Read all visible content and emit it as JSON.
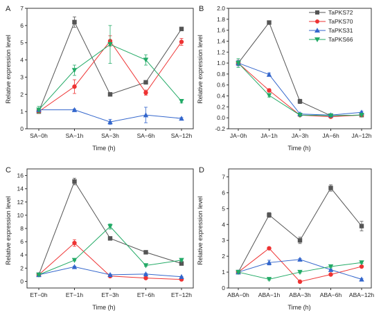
{
  "chart_data": [
    {
      "type": "line",
      "panel": "A",
      "categories": [
        "SA−0h",
        "SA−1h",
        "SA−3h",
        "SA−6h",
        "SA−12h"
      ],
      "xlabel": "Time (h)",
      "ylabel": "Relative expression level",
      "ylim": [
        0,
        7
      ],
      "yticks": [
        "0",
        "1",
        "2",
        "3",
        "4",
        "5",
        "6",
        "7"
      ],
      "series": [
        {
          "color": "#555555",
          "marker": "square",
          "values": [
            1.0,
            6.2,
            2.0,
            2.7,
            5.8
          ],
          "errors": [
            0.1,
            0.3,
            0.05,
            0.1,
            0.1
          ]
        },
        {
          "color": "#ee3333",
          "marker": "circle",
          "values": [
            1.0,
            2.45,
            5.1,
            2.1,
            5.05
          ],
          "errors": [
            0.1,
            0.4,
            0.3,
            0.15,
            0.2
          ]
        },
        {
          "color": "#3366cc",
          "marker": "triangle-up",
          "values": [
            1.1,
            1.1,
            0.4,
            0.8,
            0.6
          ],
          "errors": [
            0.05,
            0.05,
            0.15,
            0.45,
            0.05
          ]
        },
        {
          "color": "#22aa66",
          "marker": "triangle-down",
          "values": [
            1.1,
            3.4,
            4.9,
            4.0,
            1.6
          ],
          "errors": [
            0.2,
            0.3,
            1.1,
            0.3,
            0.1
          ]
        }
      ]
    },
    {
      "type": "line",
      "panel": "B",
      "categories": [
        "JA−0h",
        "JA−1h",
        "JA−3h",
        "JA−6h",
        "JA−12h"
      ],
      "xlabel": "Time (h)",
      "ylabel": "Relative expression level",
      "ylim": [
        -0.2,
        2.0
      ],
      "yticks": [
        "-0.2",
        "0.0",
        "0.2",
        "0.4",
        "0.6",
        "0.8",
        "1.0",
        "1.2",
        "1.4",
        "1.6",
        "1.8",
        "2.0"
      ],
      "legend": {
        "position": "top-right",
        "entries": [
          "TaPKS72",
          "TaPKS70",
          "TaPKS31",
          "TaPKS66"
        ]
      },
      "series": [
        {
          "name": "TaPKS72",
          "color": "#555555",
          "marker": "square",
          "values": [
            1.0,
            1.74,
            0.3,
            0.04,
            0.05
          ],
          "errors": [
            0.05,
            0.02,
            0.04,
            0.02,
            0.02
          ]
        },
        {
          "name": "TaPKS70",
          "color": "#ee3333",
          "marker": "circle",
          "values": [
            1.0,
            0.5,
            0.05,
            0.02,
            0.05
          ],
          "errors": [
            0.05,
            0.03,
            0.02,
            0.01,
            0.01
          ]
        },
        {
          "name": "TaPKS31",
          "color": "#3366cc",
          "marker": "triangle-up",
          "values": [
            1.0,
            0.79,
            0.07,
            0.05,
            0.1
          ],
          "errors": [
            0.05,
            0.03,
            0.02,
            0.01,
            0.02
          ]
        },
        {
          "name": "TaPKS66",
          "color": "#22aa66",
          "marker": "triangle-down",
          "values": [
            1.0,
            0.41,
            0.05,
            0.04,
            0.05
          ],
          "errors": [
            0.08,
            0.03,
            0.02,
            0.01,
            0.01
          ]
        }
      ]
    },
    {
      "type": "line",
      "panel": "C",
      "categories": [
        "ET−0h",
        "ET−1h",
        "ET−3h",
        "ET−6h",
        "ET−12h"
      ],
      "xlabel": "Time (h)",
      "ylabel": "Relative expression level",
      "ylim": [
        -1,
        17
      ],
      "yticks": [
        "0",
        "2",
        "4",
        "6",
        "8",
        "10",
        "12",
        "14",
        "16"
      ],
      "series": [
        {
          "color": "#555555",
          "marker": "square",
          "values": [
            1.0,
            15.1,
            6.5,
            4.4,
            2.7
          ],
          "errors": [
            0.1,
            0.5,
            0.1,
            0.1,
            0.1
          ]
        },
        {
          "color": "#ee3333",
          "marker": "circle",
          "values": [
            1.0,
            5.8,
            0.8,
            0.5,
            0.3
          ],
          "errors": [
            0.1,
            0.5,
            0.1,
            0.05,
            0.05
          ]
        },
        {
          "color": "#3366cc",
          "marker": "triangle-up",
          "values": [
            1.0,
            2.2,
            1.0,
            1.1,
            0.7
          ],
          "errors": [
            0.1,
            0.1,
            0.1,
            0.1,
            0.05
          ]
        },
        {
          "color": "#22aa66",
          "marker": "triangle-down",
          "values": [
            1.0,
            3.2,
            8.3,
            2.4,
            3.2
          ],
          "errors": [
            0.1,
            0.1,
            0.4,
            0.1,
            0.1
          ]
        }
      ]
    },
    {
      "type": "line",
      "panel": "D",
      "categories": [
        "ABA−0h",
        "ABA−1h",
        "ABA−3h",
        "ABA−6h",
        "ABA−12h"
      ],
      "xlabel": "Time (h)",
      "ylabel": "Relative expression level",
      "ylim": [
        0,
        7.5
      ],
      "yticks": [
        "0",
        "1",
        "2",
        "3",
        "4",
        "5",
        "6",
        "7"
      ],
      "series": [
        {
          "color": "#555555",
          "marker": "square",
          "values": [
            1.0,
            4.6,
            3.0,
            6.3,
            3.9
          ],
          "errors": [
            0.05,
            0.15,
            0.2,
            0.2,
            0.3
          ]
        },
        {
          "color": "#ee3333",
          "marker": "circle",
          "values": [
            1.0,
            2.5,
            0.4,
            0.85,
            1.35
          ],
          "errors": [
            0.05,
            0.05,
            0.05,
            0.05,
            0.05
          ]
        },
        {
          "color": "#3366cc",
          "marker": "triangle-up",
          "values": [
            1.0,
            1.6,
            1.8,
            1.15,
            0.55
          ],
          "errors": [
            0.05,
            0.15,
            0.05,
            0.05,
            0.05
          ]
        },
        {
          "color": "#22aa66",
          "marker": "triangle-down",
          "values": [
            1.0,
            0.55,
            1.0,
            1.35,
            1.6
          ],
          "errors": [
            0.05,
            0.05,
            0.05,
            0.05,
            0.05
          ]
        }
      ]
    }
  ]
}
